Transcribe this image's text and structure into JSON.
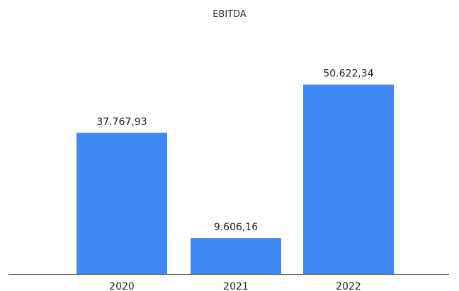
{
  "chart_data": {
    "type": "bar",
    "title": "EBITDA",
    "categories": [
      "2020",
      "2021",
      "2022"
    ],
    "values": [
      37767.93,
      9606.16,
      50622.34
    ],
    "value_labels": [
      "37.767,93",
      "9.606,16",
      "50.622,34"
    ],
    "ylim": [
      0,
      60000
    ],
    "grid": false,
    "legend": "none",
    "bar_color": "#4189f2",
    "axis_color": "#555555"
  }
}
